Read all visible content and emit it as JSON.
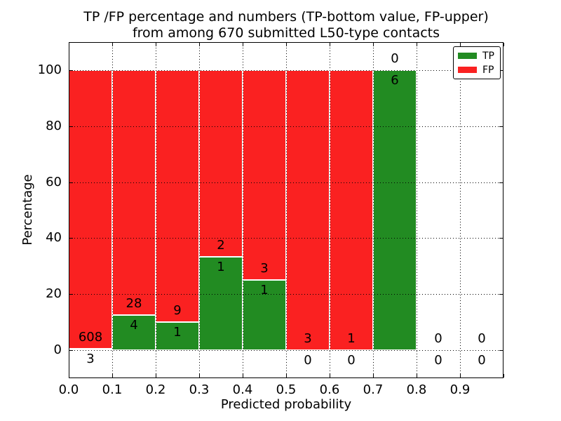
{
  "title": {
    "line1": "TP /FP percentage and numbers (TP-bottom value, FP-upper)",
    "line2": "from among 670 submitted L50-type contacts"
  },
  "axes": {
    "xlabel": "Predicted probability",
    "ylabel": "Percentage",
    "x_tick_labels": [
      "0.0",
      "0.1",
      "0.2",
      "0.3",
      "0.4",
      "0.5",
      "0.6",
      "0.7",
      "0.8",
      "0.9"
    ],
    "y_tick_labels": [
      "0",
      "20",
      "40",
      "60",
      "80",
      "100"
    ],
    "xlim": [
      0.0,
      1.0
    ],
    "ylim": [
      -10,
      110
    ],
    "grid": "dotted black, drawn over bars"
  },
  "legend": {
    "position": "upper right",
    "items": [
      {
        "label": "TP",
        "color": "#228b22"
      },
      {
        "label": "FP",
        "color": "#fa2121"
      }
    ]
  },
  "chart_data": {
    "type": "bar",
    "stacked": true,
    "title": "TP /FP percentage and numbers (TP-bottom value, FP-upper) from among 670 submitted L50-type contacts",
    "xlabel": "Predicted probability",
    "ylabel": "Percentage",
    "xlim": [
      0.0,
      1.0
    ],
    "ylim": [
      -10,
      110
    ],
    "bin_width": 0.1,
    "total_contacts": 670,
    "colors": {
      "tp": "#228b22",
      "fp": "#fa2121",
      "edge": "#ffffff"
    },
    "annotation_rule": "FP count printed above TP/FP boundary, TP count printed below it",
    "bins": [
      {
        "x_start": 0.0,
        "x_end": 0.1,
        "tp_count": 3,
        "fp_count": 608,
        "tp_pct": 0.49,
        "fp_pct": 99.51
      },
      {
        "x_start": 0.1,
        "x_end": 0.2,
        "tp_count": 4,
        "fp_count": 28,
        "tp_pct": 12.5,
        "fp_pct": 87.5
      },
      {
        "x_start": 0.2,
        "x_end": 0.3,
        "tp_count": 1,
        "fp_count": 9,
        "tp_pct": 10.0,
        "fp_pct": 90.0
      },
      {
        "x_start": 0.3,
        "x_end": 0.4,
        "tp_count": 1,
        "fp_count": 2,
        "tp_pct": 33.33,
        "fp_pct": 66.67
      },
      {
        "x_start": 0.4,
        "x_end": 0.5,
        "tp_count": 1,
        "fp_count": 3,
        "tp_pct": 25.0,
        "fp_pct": 75.0
      },
      {
        "x_start": 0.5,
        "x_end": 0.6,
        "tp_count": 0,
        "fp_count": 3,
        "tp_pct": 0.0,
        "fp_pct": 100.0
      },
      {
        "x_start": 0.6,
        "x_end": 0.7,
        "tp_count": 0,
        "fp_count": 1,
        "tp_pct": 0.0,
        "fp_pct": 100.0
      },
      {
        "x_start": 0.7,
        "x_end": 0.8,
        "tp_count": 6,
        "fp_count": 0,
        "tp_pct": 100.0,
        "fp_pct": 0.0
      },
      {
        "x_start": 0.8,
        "x_end": 0.9,
        "tp_count": 0,
        "fp_count": 0,
        "tp_pct": 0.0,
        "fp_pct": 0.0
      },
      {
        "x_start": 0.9,
        "x_end": 1.0,
        "tp_count": 0,
        "fp_count": 0,
        "tp_pct": 0.0,
        "fp_pct": 0.0
      }
    ],
    "series": [
      {
        "name": "TP",
        "color": "#228b22",
        "counts": [
          3,
          4,
          1,
          1,
          1,
          0,
          0,
          6,
          0,
          0
        ]
      },
      {
        "name": "FP",
        "color": "#fa2121",
        "counts": [
          608,
          28,
          9,
          2,
          3,
          3,
          1,
          0,
          0,
          0
        ]
      }
    ]
  }
}
